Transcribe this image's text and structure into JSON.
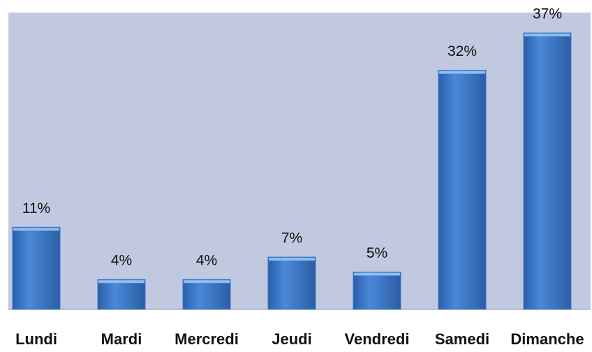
{
  "chart_data": {
    "type": "bar",
    "categories": [
      "Lundi",
      "Mardi",
      "Mercredi",
      "Jeudi",
      "Vendredi",
      "Samedi",
      "Dimanche"
    ],
    "values": [
      11,
      4,
      4,
      7,
      5,
      32,
      37
    ],
    "value_labels": [
      "11%",
      "4%",
      "4%",
      "7%",
      "5%",
      "32%",
      "37%"
    ],
    "color": "#3b78c9"
  }
}
